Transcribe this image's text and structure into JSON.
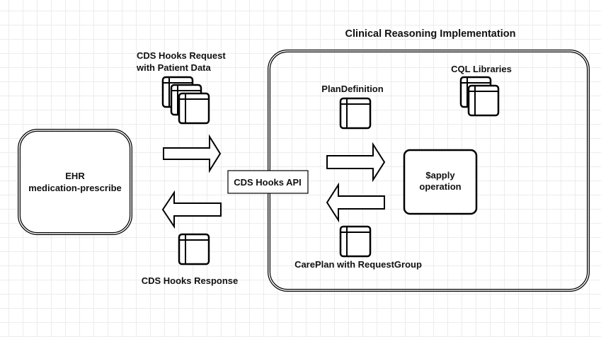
{
  "title": "Clinical Reasoning Implementation",
  "ehr": {
    "line1": "EHR",
    "line2": "medication-prescribe"
  },
  "request_label": {
    "line1": "CDS Hooks Request",
    "line2": "with Patient Data"
  },
  "response_label": "CDS Hooks Response",
  "api_label": "CDS Hooks API",
  "plan_definition_label": "PlanDefinition",
  "cql_label": "CQL Libraries",
  "apply": {
    "line1": "$apply",
    "line2": "operation"
  },
  "careplan_label": "CarePlan with RequestGroup"
}
